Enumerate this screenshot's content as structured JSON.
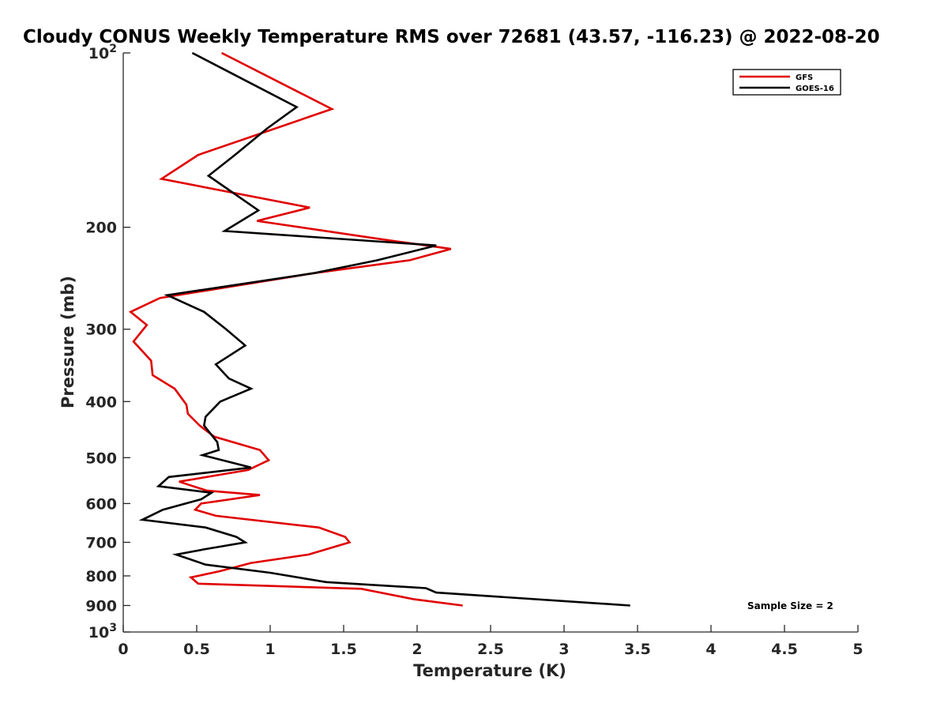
{
  "chart_data": {
    "type": "line",
    "title": "Cloudy CONUS Weekly Temperature RMS over 72681 (43.57, -116.23) @ 2022-08-20",
    "xlabel": "Temperature (K)",
    "ylabel": "Pressure (mb)",
    "xlim": [
      0,
      5
    ],
    "ylim": [
      100,
      1000
    ],
    "y_scale": "log",
    "y_reversed": true,
    "grid": false,
    "legend_position": "top-right",
    "x_ticks": [
      {
        "value": 0,
        "label": "0"
      },
      {
        "value": 0.5,
        "label": "0.5"
      },
      {
        "value": 1,
        "label": "1"
      },
      {
        "value": 1.5,
        "label": "1.5"
      },
      {
        "value": 2,
        "label": "2"
      },
      {
        "value": 2.5,
        "label": "2.5"
      },
      {
        "value": 3,
        "label": "3"
      },
      {
        "value": 3.5,
        "label": "3.5"
      },
      {
        "value": 4,
        "label": "4"
      },
      {
        "value": 4.5,
        "label": "4.5"
      },
      {
        "value": 5,
        "label": "5"
      }
    ],
    "y_ticks": [
      {
        "value": 100,
        "base": "10",
        "exp": "2"
      },
      {
        "value": 200,
        "label": "200"
      },
      {
        "value": 300,
        "label": "300"
      },
      {
        "value": 400,
        "label": "400"
      },
      {
        "value": 500,
        "label": "500"
      },
      {
        "value": 600,
        "label": "600"
      },
      {
        "value": 700,
        "label": "700"
      },
      {
        "value": 800,
        "label": "800"
      },
      {
        "value": 900,
        "label": "900"
      },
      {
        "value": 1000,
        "base": "10",
        "exp": "3"
      }
    ],
    "series": [
      {
        "name": "GFS",
        "color": "#e00000",
        "points": [
          [
            0.67,
            100
          ],
          [
            1.42,
            125
          ],
          [
            0.51,
            150
          ],
          [
            0.26,
            165
          ],
          [
            1.27,
            185
          ],
          [
            0.91,
            195
          ],
          [
            1.77,
            210
          ],
          [
            2.23,
            218
          ],
          [
            1.95,
            228
          ],
          [
            1.3,
            240
          ],
          [
            0.25,
            265
          ],
          [
            0.05,
            280
          ],
          [
            0.16,
            295
          ],
          [
            0.07,
            315
          ],
          [
            0.19,
            340
          ],
          [
            0.2,
            360
          ],
          [
            0.35,
            380
          ],
          [
            0.43,
            405
          ],
          [
            0.44,
            420
          ],
          [
            0.52,
            440
          ],
          [
            0.62,
            460
          ],
          [
            0.93,
            485
          ],
          [
            0.99,
            505
          ],
          [
            0.85,
            525
          ],
          [
            0.38,
            550
          ],
          [
            0.57,
            570
          ],
          [
            0.93,
            580
          ],
          [
            0.53,
            600
          ],
          [
            0.49,
            615
          ],
          [
            0.63,
            630
          ],
          [
            1.33,
            660
          ],
          [
            1.51,
            685
          ],
          [
            1.54,
            700
          ],
          [
            1.26,
            735
          ],
          [
            0.87,
            760
          ],
          [
            0.66,
            785
          ],
          [
            0.46,
            805
          ],
          [
            0.51,
            825
          ],
          [
            1.62,
            842
          ],
          [
            1.98,
            878
          ],
          [
            2.31,
            900
          ]
        ]
      },
      {
        "name": "GOES-16",
        "color": "#000000",
        "points": [
          [
            0.47,
            100
          ],
          [
            1.18,
            124
          ],
          [
            0.98,
            135
          ],
          [
            0.76,
            150
          ],
          [
            0.58,
            163
          ],
          [
            0.92,
            187
          ],
          [
            0.69,
            203
          ],
          [
            2.13,
            215
          ],
          [
            1.73,
            228
          ],
          [
            1.3,
            240
          ],
          [
            0.3,
            262
          ],
          [
            0.55,
            280
          ],
          [
            0.7,
            300
          ],
          [
            0.83,
            320
          ],
          [
            0.63,
            345
          ],
          [
            0.72,
            365
          ],
          [
            0.87,
            380
          ],
          [
            0.66,
            400
          ],
          [
            0.56,
            425
          ],
          [
            0.55,
            440
          ],
          [
            0.64,
            470
          ],
          [
            0.65,
            485
          ],
          [
            0.54,
            495
          ],
          [
            0.87,
            520
          ],
          [
            0.31,
            540
          ],
          [
            0.24,
            560
          ],
          [
            0.6,
            575
          ],
          [
            0.53,
            590
          ],
          [
            0.27,
            615
          ],
          [
            0.13,
            640
          ],
          [
            0.56,
            660
          ],
          [
            0.77,
            685
          ],
          [
            0.83,
            700
          ],
          [
            0.55,
            720
          ],
          [
            0.36,
            735
          ],
          [
            0.56,
            765
          ],
          [
            1.0,
            790
          ],
          [
            1.38,
            820
          ],
          [
            2.06,
            840
          ],
          [
            2.13,
            855
          ],
          [
            3.45,
            900
          ]
        ]
      }
    ],
    "annotations": [
      {
        "text": "Sample Size = 2"
      }
    ]
  }
}
